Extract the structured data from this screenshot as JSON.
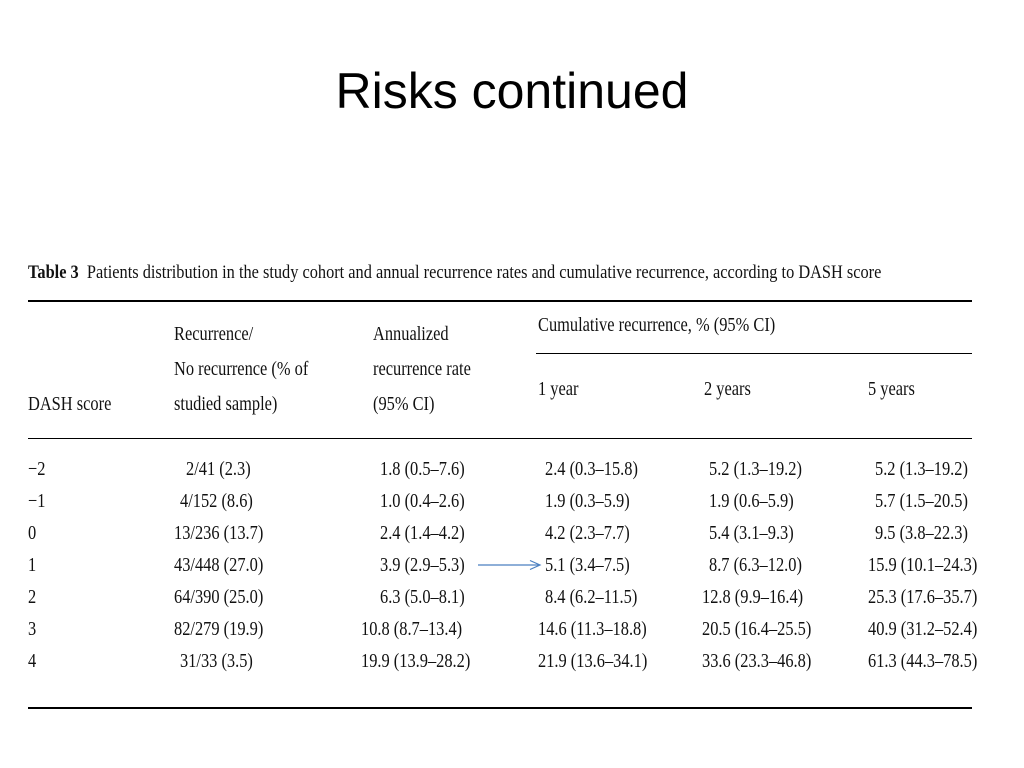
{
  "slide": {
    "title": "Risks continued"
  },
  "table": {
    "caption_label": "Table 3",
    "caption_text": "Patients distribution in the study cohort and annual recurrence rates and cumulative recurrence, according to DASH score",
    "headers": {
      "dash": "DASH score",
      "recurrence_1": "Recurrence/",
      "recurrence_2": "No recurrence (% of",
      "recurrence_3": "studied sample)",
      "annual_1": "Annualized",
      "annual_2": "recurrence rate",
      "annual_3": "(95% CI)",
      "cumulative": "Cumulative recurrence, % (95% CI)",
      "y1": "1 year",
      "y2": "2 years",
      "y5": "5 years"
    },
    "rows": [
      {
        "dash": "−2",
        "rec": "2/41 (2.3)",
        "ann": "1.8 (0.5–7.6)",
        "y1": "2.4 (0.3–15.8)",
        "y2": "5.2 (1.3–19.2)",
        "y5": "5.2 (1.3–19.2)"
      },
      {
        "dash": "−1",
        "rec": "4/152 (8.6)",
        "ann": "1.0 (0.4–2.6)",
        "y1": "1.9 (0.3–5.9)",
        "y2": "1.9 (0.6–5.9)",
        "y5": "5.7 (1.5–20.5)"
      },
      {
        "dash": "0",
        "rec": "13/236 (13.7)",
        "ann": "2.4 (1.4–4.2)",
        "y1": "4.2 (2.3–7.7)",
        "y2": "5.4 (3.1–9.3)",
        "y5": "9.5 (3.8–22.3)"
      },
      {
        "dash": "1",
        "rec": "43/448 (27.0)",
        "ann": "3.9 (2.9–5.3)",
        "y1": "5.1 (3.4–7.5)",
        "y2": "8.7 (6.3–12.0)",
        "y5": "15.9 (10.1–24.3)"
      },
      {
        "dash": "2",
        "rec": "64/390 (25.0)",
        "ann": "6.3 (5.0–8.1)",
        "y1": "8.4 (6.2–11.5)",
        "y2": "12.8 (9.9–16.4)",
        "y5": "25.3 (17.6–35.7)"
      },
      {
        "dash": "3",
        "rec": "82/279 (19.9)",
        "ann": "10.8 (8.7–13.4)",
        "y1": "14.6 (11.3–18.8)",
        "y2": "20.5 (16.4–25.5)",
        "y5": "40.9 (31.2–52.4)"
      },
      {
        "dash": "4",
        "rec": "31/33 (3.5)",
        "ann": "19.9 (13.9–28.2)",
        "y1": "21.9 (13.6–34.1)",
        "y2": "33.6 (23.3–46.8)",
        "y5": "61.3 (44.3–78.5)"
      }
    ],
    "arrow_color": "#4a7fc1"
  }
}
